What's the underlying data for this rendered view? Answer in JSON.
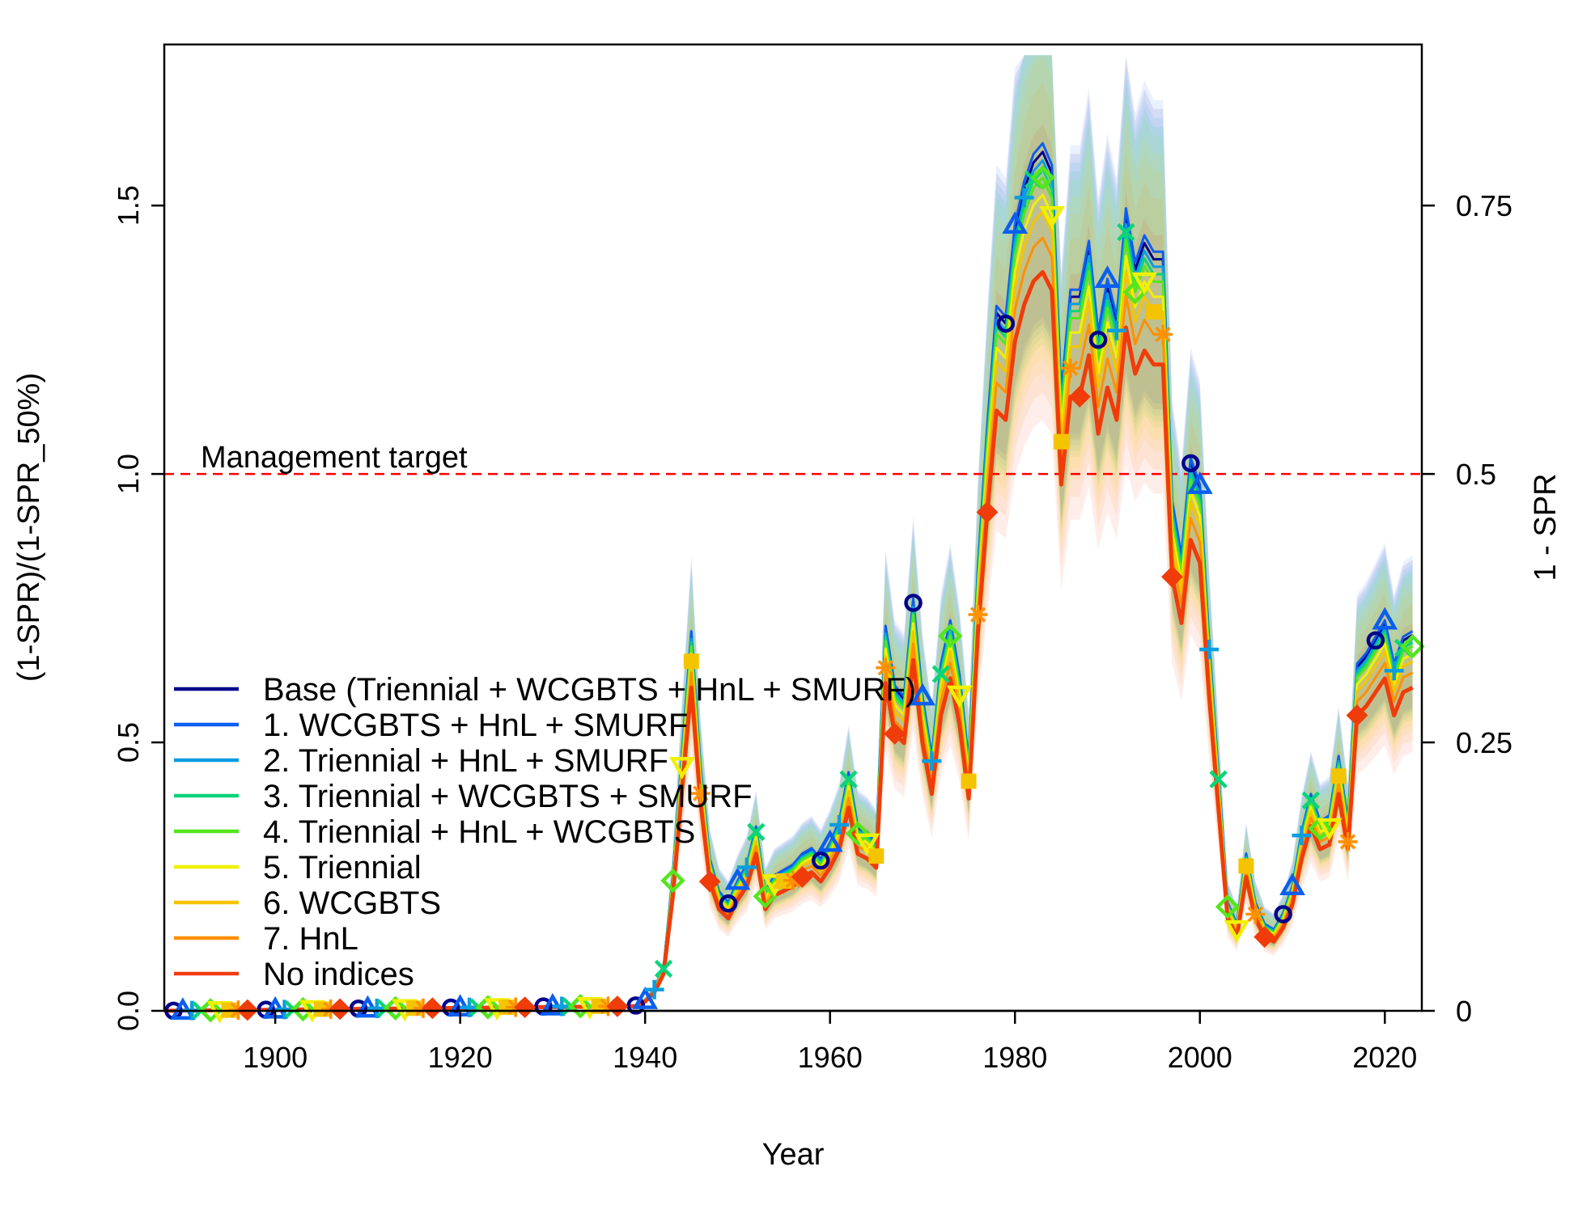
{
  "chart_data": {
    "type": "line",
    "title": "",
    "xlabel": "Year",
    "ylabel": "(1-SPR)/(1-SPR_50%)",
    "ylabel_right": "1 - SPR",
    "xlim": [
      1888,
      2024
    ],
    "ylim": [
      0,
      1.8
    ],
    "x_ticks": [
      1900,
      1920,
      1940,
      1960,
      1980,
      2000,
      2020
    ],
    "y_ticks": [
      0.0,
      0.5,
      1.0,
      1.5
    ],
    "y_tick_labels": [
      "0.0",
      "0.5",
      "1.0",
      "1.5"
    ],
    "y_right_ticks": [
      0,
      0.5,
      1.0,
      1.5
    ],
    "y_right_tick_labels": [
      "0",
      "0.25",
      "0.5",
      "0.75"
    ],
    "reference_line": {
      "y": 1.0,
      "label": "Management target",
      "color": "#ff0000"
    },
    "legend_position": "center-left",
    "base_curve": {
      "x": [
        1888,
        1939,
        1940,
        1941,
        1942,
        1943,
        1944,
        1945,
        1946,
        1947,
        1948,
        1949,
        1950,
        1951,
        1952,
        1953,
        1954,
        1955,
        1956,
        1957,
        1958,
        1959,
        1960,
        1961,
        1962,
        1963,
        1964,
        1965,
        1966,
        1967,
        1968,
        1969,
        1970,
        1971,
        1972,
        1973,
        1974,
        1975,
        1976,
        1977,
        1978,
        1979,
        1980,
        1981,
        1982,
        1983,
        1984,
        1985,
        1986,
        1987,
        1988,
        1989,
        1990,
        1991,
        1992,
        1993,
        1994,
        1995,
        1996,
        1997,
        1998,
        1999,
        2000,
        2001,
        2002,
        2003,
        2004,
        2005,
        2006,
        2007,
        2008,
        2009,
        2010,
        2011,
        2012,
        2013,
        2014,
        2015,
        2016,
        2017,
        2018,
        2019,
        2020,
        2021,
        2022,
        2023,
        2024
      ],
      "y": [
        0.0,
        0.01,
        0.02,
        0.04,
        0.08,
        0.25,
        0.48,
        0.7,
        0.45,
        0.28,
        0.22,
        0.2,
        0.24,
        0.27,
        0.34,
        0.22,
        0.25,
        0.26,
        0.27,
        0.29,
        0.3,
        0.28,
        0.31,
        0.35,
        0.44,
        0.34,
        0.33,
        0.31,
        0.71,
        0.6,
        0.58,
        0.76,
        0.58,
        0.47,
        0.64,
        0.72,
        0.62,
        0.46,
        0.82,
        1.08,
        1.3,
        1.28,
        1.45,
        1.53,
        1.58,
        1.6,
        1.56,
        1.14,
        1.33,
        1.33,
        1.42,
        1.25,
        1.35,
        1.28,
        1.48,
        1.38,
        1.43,
        1.4,
        1.4,
        0.94,
        0.84,
        1.02,
        0.97,
        0.68,
        0.44,
        0.2,
        0.16,
        0.29,
        0.2,
        0.16,
        0.15,
        0.18,
        0.23,
        0.33,
        0.4,
        0.35,
        0.36,
        0.47,
        0.35,
        0.64,
        0.66,
        0.69,
        0.72,
        0.64,
        0.69,
        0.7,
        0.65
      ]
    },
    "band": {
      "upper_scale": 1.2,
      "lower_scale": 0.8
    },
    "series": [
      {
        "name": "Base (Triennial + WCGBTS + HnL + SMURF)",
        "color": "#00008b",
        "marker": "circle",
        "y_scale": 1.0,
        "offset": 0
      },
      {
        "name": "1. WCGBTS + HnL + SMURF",
        "color": "#0a5ef0",
        "marker": "triangle-up",
        "y_scale": 1.01,
        "offset": 1
      },
      {
        "name": "2. Triennial + HnL + SMURF",
        "color": "#0b9de0",
        "marker": "plus",
        "y_scale": 0.99,
        "offset": 2
      },
      {
        "name": "3. Triennial + WCGBTS + SMURF",
        "color": "#0ad47a",
        "marker": "cross",
        "y_scale": 0.98,
        "offset": 3
      },
      {
        "name": "4. Triennial + HnL + WCGBTS",
        "color": "#54e61c",
        "marker": "diamond",
        "y_scale": 0.97,
        "offset": 4
      },
      {
        "name": "5. Triennial",
        "color": "#f0f000",
        "marker": "triangle-down",
        "y_scale": 0.95,
        "offset": 5
      },
      {
        "name": "6. WCGBTS",
        "color": "#f5c400",
        "marker": "square",
        "y_scale": 0.93,
        "offset": 6
      },
      {
        "name": "7. HnL",
        "color": "#ff9000",
        "marker": "asterisk",
        "y_scale": 0.9,
        "offset": 7
      },
      {
        "name": "No indices",
        "color": "#f03c0a",
        "marker": "diamond-filled",
        "y_scale": 0.86,
        "offset": 8
      }
    ]
  }
}
